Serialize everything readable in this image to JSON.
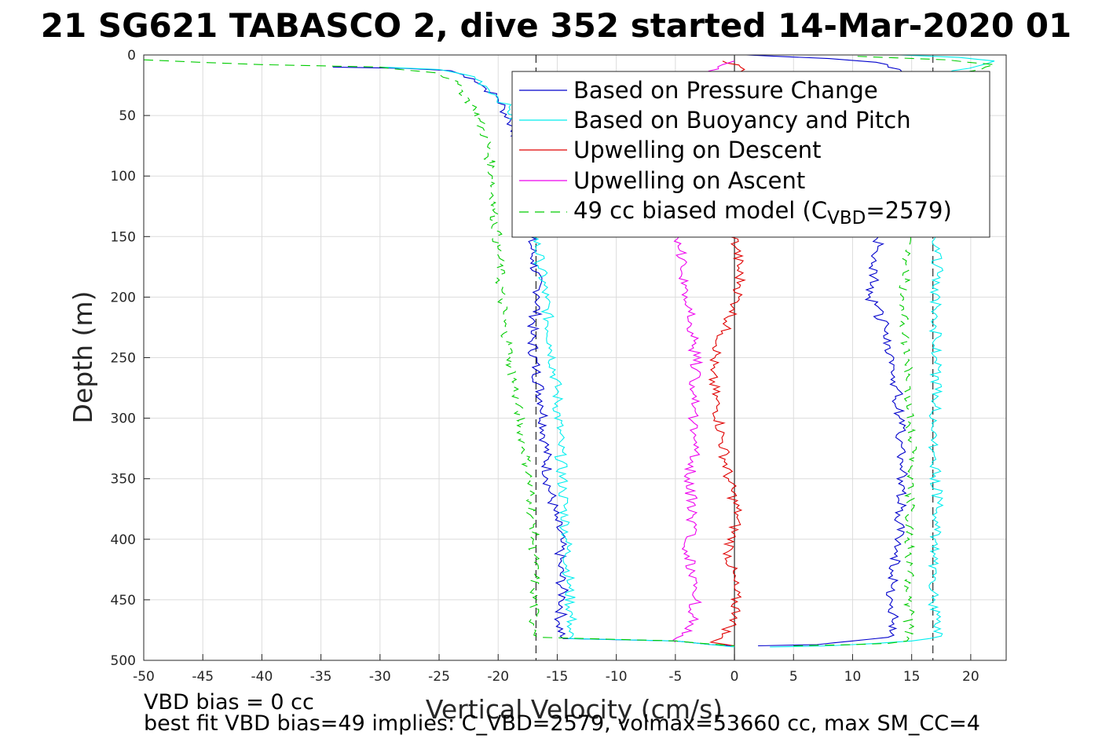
{
  "chart_data": {
    "type": "line",
    "title": "21 SG621 TABASCO 2, dive 352 started 14-Mar-2020 01",
    "xlabel": "Vertical Velocity (cm/s)",
    "ylabel": "Depth (m)",
    "xlim": [
      -50,
      23
    ],
    "ylim": [
      0,
      500
    ],
    "y_reversed": true,
    "grid": true,
    "xticks": [
      "-50",
      "-45",
      "-40",
      "-35",
      "-30",
      "-25",
      "-20",
      "-15",
      "-10",
      "-5",
      "0",
      "5",
      "10",
      "15",
      "20"
    ],
    "yticks": [
      "0",
      "50",
      "100",
      "150",
      "200",
      "250",
      "300",
      "350",
      "400",
      "450",
      "500"
    ],
    "legend_position": "top-right",
    "legend": {
      "pressure": "Based on Pressure Change",
      "buoyancy": "Based on Buoyancy and Pitch",
      "up_descent": "Upwelling on Descent",
      "up_ascent": "Upwelling on Ascent",
      "model_prefix": "49 cc biased model (C",
      "model_sub": "VBD",
      "model_suffix": "=2579)"
    },
    "footer": {
      "line1": "VBD bias = 0 cc",
      "line2": "best fit VBD bias=49 implies: C_VBD=2579, volmax=53660 cc, max SM_CC=4"
    },
    "reference_lines": {
      "x": [
        -16.8,
        0,
        16.8
      ],
      "color": "#000000"
    },
    "series": [
      {
        "name": "Based on Pressure Change",
        "color": "#0000cc",
        "dash": "none",
        "descent": [
          [
            -34,
            10
          ],
          [
            -28,
            11
          ],
          [
            -24,
            13
          ],
          [
            -22,
            20
          ],
          [
            -21,
            28
          ],
          [
            -20,
            36
          ],
          [
            -19.5,
            45
          ],
          [
            -19,
            55
          ],
          [
            -18.5,
            65
          ],
          [
            -18,
            80
          ],
          [
            -17.8,
            100
          ],
          [
            -17.5,
            120
          ],
          [
            -17.3,
            150
          ],
          [
            -17,
            170
          ],
          [
            -16.5,
            200
          ],
          [
            -17.2,
            230
          ],
          [
            -16.8,
            260
          ],
          [
            -16.2,
            290
          ],
          [
            -16,
            320
          ],
          [
            -15.8,
            350
          ],
          [
            -15.2,
            380
          ],
          [
            -14.7,
            400
          ],
          [
            -14.8,
            420
          ],
          [
            -14.5,
            450
          ],
          [
            -14.8,
            470
          ],
          [
            -14.5,
            482
          ],
          [
            -5,
            484
          ],
          [
            -2,
            487
          ],
          [
            0,
            488
          ]
        ],
        "ascent": [
          [
            2,
            488
          ],
          [
            7,
            487
          ],
          [
            10,
            484
          ],
          [
            13,
            481
          ],
          [
            13.5,
            470
          ],
          [
            13.3,
            440
          ],
          [
            13.8,
            410
          ],
          [
            14,
            380
          ],
          [
            14.2,
            340
          ],
          [
            14,
            300
          ],
          [
            13.5,
            260
          ],
          [
            13,
            230
          ],
          [
            11.5,
            200
          ],
          [
            12,
            170
          ],
          [
            12.2,
            150
          ],
          [
            12.3,
            120
          ],
          [
            12.5,
            90
          ],
          [
            12.8,
            60
          ],
          [
            13.2,
            30
          ],
          [
            14,
            12
          ],
          [
            12,
            6
          ],
          [
            8,
            3
          ],
          [
            1,
            0
          ]
        ]
      },
      {
        "name": "Based on Buoyancy and Pitch",
        "color": "#00eeee",
        "dash": "none",
        "descent": [
          [
            -30,
            10
          ],
          [
            -25,
            12
          ],
          [
            -22,
            18
          ],
          [
            -21,
            26
          ],
          [
            -20,
            35
          ],
          [
            -19,
            45
          ],
          [
            -18.5,
            60
          ],
          [
            -18,
            80
          ],
          [
            -17.5,
            110
          ],
          [
            -17,
            140
          ],
          [
            -16.5,
            170
          ],
          [
            -16,
            200
          ],
          [
            -15.5,
            240
          ],
          [
            -15,
            280
          ],
          [
            -14.8,
            320
          ],
          [
            -14.5,
            360
          ],
          [
            -14.2,
            400
          ],
          [
            -14,
            440
          ],
          [
            -13.8,
            470
          ],
          [
            -14,
            482
          ],
          [
            -5,
            484
          ],
          [
            -2,
            487
          ],
          [
            0,
            489
          ]
        ],
        "ascent": [
          [
            3,
            489
          ],
          [
            8,
            488
          ],
          [
            12,
            486
          ],
          [
            15,
            484
          ],
          [
            17.5,
            480
          ],
          [
            17,
            470
          ],
          [
            16.8,
            430
          ],
          [
            17,
            400
          ],
          [
            17.2,
            370
          ],
          [
            16.9,
            330
          ],
          [
            17,
            290
          ],
          [
            17.1,
            250
          ],
          [
            17,
            210
          ],
          [
            17.2,
            180
          ],
          [
            17,
            150
          ],
          [
            16.5,
            100
          ],
          [
            16,
            60
          ],
          [
            16.2,
            30
          ],
          [
            18,
            15
          ],
          [
            22,
            5
          ],
          [
            19,
            2
          ],
          [
            14,
            0
          ]
        ]
      },
      {
        "name": "Upwelling on Descent",
        "color": "#e00000",
        "dash": "none",
        "values": [
          [
            -1,
            5
          ],
          [
            0.5,
            10
          ],
          [
            1,
            20
          ],
          [
            0.2,
            40
          ],
          [
            -0.5,
            60
          ],
          [
            -1,
            80
          ],
          [
            -0.8,
            100
          ],
          [
            -0.5,
            130
          ],
          [
            0.2,
            160
          ],
          [
            0.5,
            190
          ],
          [
            0,
            210
          ],
          [
            -1,
            230
          ],
          [
            -2,
            260
          ],
          [
            -1.5,
            290
          ],
          [
            -1,
            320
          ],
          [
            -0.5,
            350
          ],
          [
            0.3,
            380
          ],
          [
            -0.5,
            410
          ],
          [
            0,
            440
          ],
          [
            0.2,
            465
          ],
          [
            -1,
            480
          ],
          [
            -2,
            485
          ],
          [
            0,
            488
          ]
        ]
      },
      {
        "name": "Upwelling on Ascent",
        "color": "#ee00ee",
        "dash": "none",
        "values": [
          [
            -5,
            485
          ],
          [
            -3.5,
            470
          ],
          [
            -3.2,
            440
          ],
          [
            -4,
            410
          ],
          [
            -3.5,
            380
          ],
          [
            -3.8,
            350
          ],
          [
            -3.2,
            320
          ],
          [
            -3.5,
            290
          ],
          [
            -3.2,
            260
          ],
          [
            -3.5,
            230
          ],
          [
            -4,
            200
          ],
          [
            -4.5,
            175
          ],
          [
            -4.7,
            150
          ],
          [
            -4.8,
            120
          ],
          [
            -4.5,
            90
          ],
          [
            -4,
            60
          ],
          [
            -3,
            35
          ],
          [
            -2,
            15
          ],
          [
            -1,
            8
          ],
          [
            0,
            5
          ]
        ]
      },
      {
        "name": "49 cc biased model (CVBD=2579)",
        "color": "#00cc00",
        "dash": "12 8",
        "descent": [
          [
            -50,
            4
          ],
          [
            -40,
            8
          ],
          [
            -30,
            10
          ],
          [
            -25,
            15
          ],
          [
            -24,
            20
          ],
          [
            -23,
            30
          ],
          [
            -22,
            45
          ],
          [
            -21,
            70
          ],
          [
            -20.5,
            100
          ],
          [
            -20.3,
            130
          ],
          [
            -20,
            160
          ],
          [
            -19.8,
            190
          ],
          [
            -19.5,
            220
          ],
          [
            -19,
            250
          ],
          [
            -18.5,
            280
          ],
          [
            -18,
            310
          ],
          [
            -17.5,
            340
          ],
          [
            -17.2,
            370
          ],
          [
            -17,
            400
          ],
          [
            -16.9,
            440
          ],
          [
            -17,
            470
          ],
          [
            -16.5,
            481
          ],
          [
            -5,
            484
          ],
          [
            0,
            488
          ]
        ],
        "ascent": [
          [
            5,
            488
          ],
          [
            10,
            487
          ],
          [
            13,
            486
          ],
          [
            14.6,
            484
          ],
          [
            14.8,
            470
          ],
          [
            14.7,
            440
          ],
          [
            14.8,
            400
          ],
          [
            14.9,
            360
          ],
          [
            15,
            320
          ],
          [
            14.8,
            280
          ],
          [
            14.5,
            240
          ],
          [
            14.3,
            200
          ],
          [
            14.6,
            160
          ],
          [
            14.7,
            130
          ],
          [
            14.8,
            100
          ],
          [
            15,
            70
          ],
          [
            16,
            40
          ],
          [
            18,
            20
          ],
          [
            22,
            8
          ],
          [
            18,
            4
          ],
          [
            10,
            1
          ]
        ]
      }
    ]
  }
}
